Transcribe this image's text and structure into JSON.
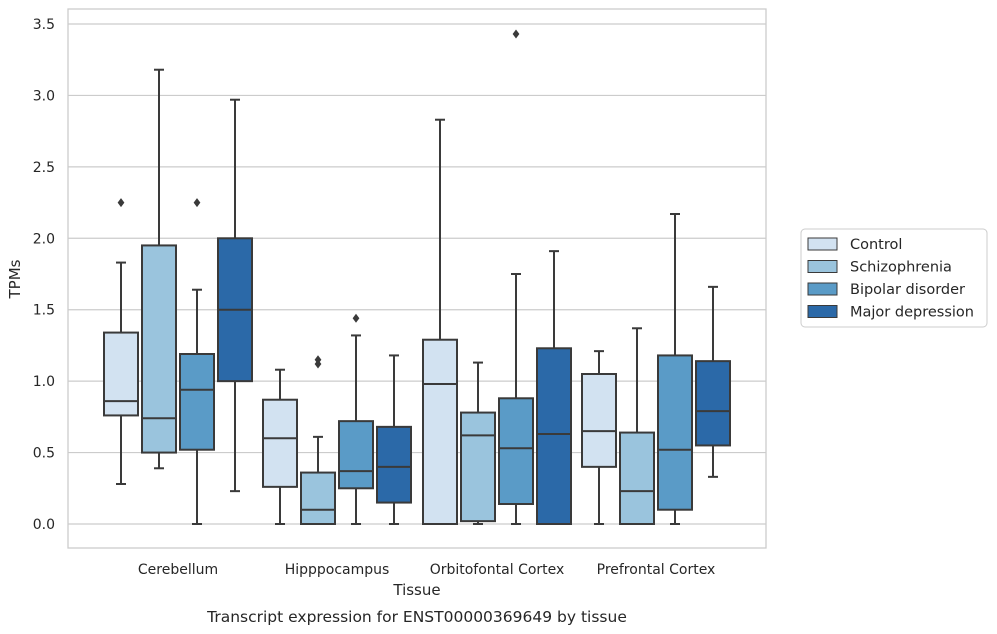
{
  "caption": "Transcript expression for ENST00000369649 by tissue",
  "chart_data": {
    "type": "box",
    "xlabel": "Tissue",
    "ylabel": "TPMs",
    "ylim": [
      -0.17,
      3.6
    ],
    "yticks": [
      "0.0",
      "0.5",
      "1.0",
      "1.5",
      "2.0",
      "2.5",
      "3.0",
      "3.5"
    ],
    "grid": "horizontal",
    "legend_position": "right",
    "categories": [
      "Cerebellum",
      "Hipppocampus",
      "Orbitofontal Cortex",
      "Prefrontal Cortex"
    ],
    "series": [
      {
        "name": "Control",
        "color": "#d2e2f1",
        "boxes": [
          {
            "whisker_low": 0.28,
            "q1": 0.76,
            "median": 0.86,
            "q3": 1.34,
            "whisker_high": 1.83,
            "outliers": [
              2.25
            ]
          },
          {
            "whisker_low": 0.0,
            "q1": 0.26,
            "median": 0.6,
            "q3": 0.87,
            "whisker_high": 1.08,
            "outliers": []
          },
          {
            "whisker_low": 0.0,
            "q1": 0.0,
            "median": 0.98,
            "q3": 1.29,
            "whisker_high": 2.83,
            "outliers": []
          },
          {
            "whisker_low": 0.0,
            "q1": 0.4,
            "median": 0.65,
            "q3": 1.05,
            "whisker_high": 1.21,
            "outliers": []
          }
        ]
      },
      {
        "name": "Schizophrenia",
        "color": "#9ac4dd",
        "boxes": [
          {
            "whisker_low": 0.39,
            "q1": 0.5,
            "median": 0.74,
            "q3": 1.95,
            "whisker_high": 3.18,
            "outliers": []
          },
          {
            "whisker_low": 0.0,
            "q1": 0.0,
            "median": 0.1,
            "q3": 0.36,
            "whisker_high": 0.61,
            "outliers": [
              1.12,
              1.15
            ]
          },
          {
            "whisker_low": 0.0,
            "q1": 0.02,
            "median": 0.62,
            "q3": 0.78,
            "whisker_high": 1.13,
            "outliers": []
          },
          {
            "whisker_low": 0.0,
            "q1": 0.0,
            "median": 0.23,
            "q3": 0.64,
            "whisker_high": 1.37,
            "outliers": []
          }
        ]
      },
      {
        "name": "Bipolar disorder",
        "color": "#5a9bc7",
        "boxes": [
          {
            "whisker_low": 0.0,
            "q1": 0.52,
            "median": 0.94,
            "q3": 1.19,
            "whisker_high": 1.64,
            "outliers": [
              2.25
            ]
          },
          {
            "whisker_low": 0.0,
            "q1": 0.25,
            "median": 0.37,
            "q3": 0.72,
            "whisker_high": 1.32,
            "outliers": [
              1.44
            ]
          },
          {
            "whisker_low": 0.0,
            "q1": 0.14,
            "median": 0.53,
            "q3": 0.88,
            "whisker_high": 1.75,
            "outliers": [
              3.43
            ]
          },
          {
            "whisker_low": 0.0,
            "q1": 0.1,
            "median": 0.52,
            "q3": 1.18,
            "whisker_high": 2.17,
            "outliers": []
          }
        ]
      },
      {
        "name": "Major depression",
        "color": "#2b69a8",
        "boxes": [
          {
            "whisker_low": 0.23,
            "q1": 1.0,
            "median": 1.5,
            "q3": 2.0,
            "whisker_high": 2.97,
            "outliers": []
          },
          {
            "whisker_low": 0.0,
            "q1": 0.15,
            "median": 0.4,
            "q3": 0.68,
            "whisker_high": 1.18,
            "outliers": []
          },
          {
            "whisker_low": 0.0,
            "q1": 0.0,
            "median": 0.63,
            "q3": 1.23,
            "whisker_high": 1.91,
            "outliers": []
          },
          {
            "whisker_low": 0.33,
            "q1": 0.55,
            "median": 0.79,
            "q3": 1.14,
            "whisker_high": 1.66,
            "outliers": []
          }
        ]
      }
    ]
  }
}
